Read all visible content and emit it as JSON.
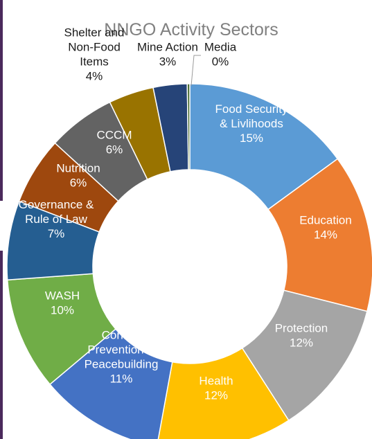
{
  "chart_data": {
    "type": "donut",
    "title": "NNGO Activity Sectors",
    "slices": [
      {
        "label": "Food Security & Livlihoods",
        "value": 15,
        "color": "#5B9BD5",
        "label_color": "#ffffff",
        "label_lines": [
          "Food Security",
          "& Livlihoods",
          "15%"
        ]
      },
      {
        "label": "Education",
        "value": 14,
        "color": "#ED7D31",
        "label_color": "#ffffff",
        "label_lines": [
          "Education",
          "14%"
        ]
      },
      {
        "label": "Protection",
        "value": 12,
        "color": "#A5A5A5",
        "label_color": "#ffffff",
        "label_lines": [
          "Protection",
          "12%"
        ]
      },
      {
        "label": "Health",
        "value": 12,
        "color": "#FFC000",
        "label_color": "#ffffff",
        "label_lines": [
          "Health",
          "12%"
        ]
      },
      {
        "label": "Conflict Prevention & Peacebuilding",
        "value": 11,
        "color": "#4472C4",
        "label_color": "#ffffff",
        "label_lines": [
          "Conflict",
          "Prevention &",
          "Peacebuilding",
          "11%"
        ]
      },
      {
        "label": "WASH",
        "value": 10,
        "color": "#70AD47",
        "label_color": "#ffffff",
        "label_lines": [
          "WASH",
          "10%"
        ]
      },
      {
        "label": "Governance & Rule of Law",
        "value": 7,
        "color": "#255E91",
        "label_color": "#ffffff",
        "label_lines": [
          "Governance &",
          "Rule of Law",
          "7%"
        ]
      },
      {
        "label": "Nutrition",
        "value": 6,
        "color": "#9E480E",
        "label_color": "#ffffff",
        "label_lines": [
          "Nutrition",
          "6%"
        ]
      },
      {
        "label": "CCCM",
        "value": 6,
        "color": "#636363",
        "label_color": "#ffffff",
        "label_lines": [
          "CCCM",
          "6%"
        ]
      },
      {
        "label": "Shelter and Non-Food Items",
        "value": 4,
        "color": "#997300",
        "label_color": "#1a1a1a",
        "label_lines": [
          "Shelter and",
          "Non-Food",
          "Items",
          "4%"
        ]
      },
      {
        "label": "Mine Action",
        "value": 3,
        "color": "#264478",
        "label_color": "#1a1a1a",
        "label_lines": [
          "Mine Action",
          "3%"
        ]
      },
      {
        "label": "Media",
        "value": 0,
        "color": "#43682B",
        "label_color": "#1a1a1a",
        "label_lines": [
          "Media",
          "0%"
        ]
      }
    ],
    "legend": "none"
  }
}
